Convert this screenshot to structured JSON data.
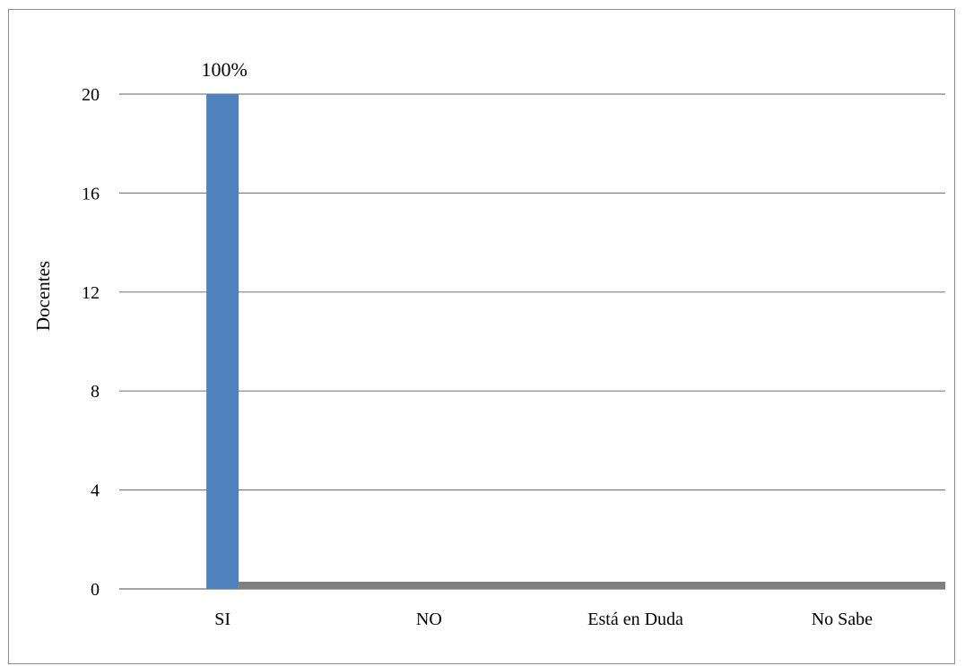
{
  "chart_data": {
    "type": "bar",
    "title": "",
    "xlabel": "",
    "ylabel": "Docentes",
    "categories": [
      "SI",
      "NO",
      "Está en Duda",
      "No Sabe"
    ],
    "series": [
      {
        "values": [
          20,
          0,
          0,
          0
        ],
        "labels": [
          "100%",
          "",
          "",
          ""
        ]
      }
    ],
    "ylim": [
      0,
      20
    ],
    "yticks": [
      0,
      4,
      8,
      12,
      16,
      20
    ],
    "grid": true,
    "legend": "none",
    "colors": {
      "bar": "#4f81bd",
      "gridline": "#7f7f7f",
      "baseline_band": "#7f7f7f",
      "border": "#8c8c8c"
    }
  }
}
